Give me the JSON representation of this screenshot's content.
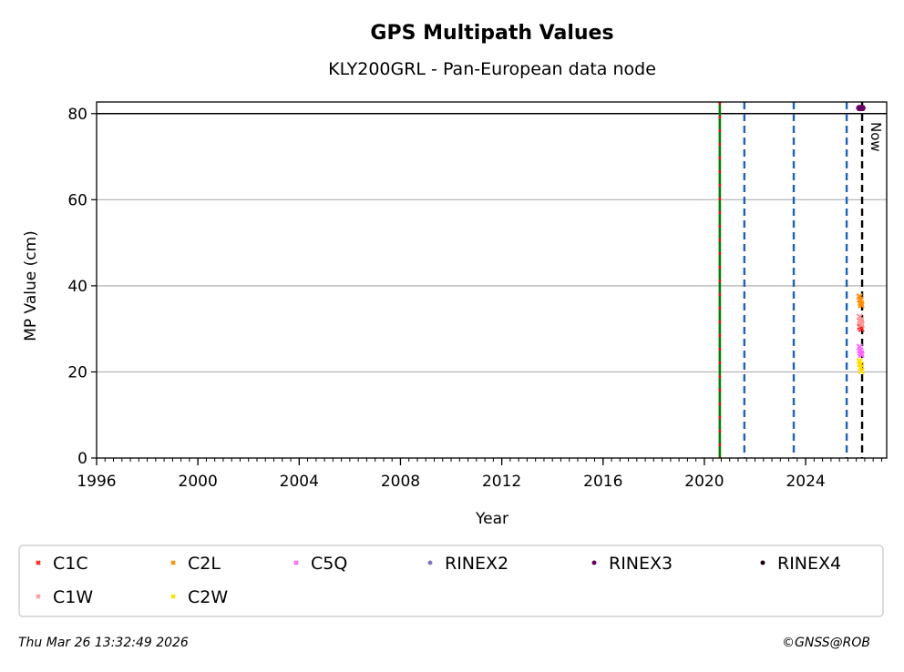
{
  "chart_data": {
    "type": "scatter",
    "title": "GPS Multipath Values",
    "subtitle": "KLY200GRL - Pan-European data node",
    "xlabel": "Year",
    "ylabel": "MP Value (cm)",
    "xlim": [
      1996,
      2027.2
    ],
    "ylim": [
      0,
      82.7
    ],
    "xticks": [
      1996,
      2000,
      2004,
      2008,
      2012,
      2016,
      2020,
      2024
    ],
    "yticks": [
      0,
      20,
      40,
      60,
      80
    ],
    "grid": "y",
    "reference_line_y": 80,
    "event_lines": [
      {
        "x": 2020.61,
        "type": "receiver-antenna",
        "colors": [
          "#008000",
          "#e8131b"
        ]
      },
      {
        "x": 2021.58,
        "type": "firmware",
        "colors": [
          "#1f62b8"
        ]
      },
      {
        "x": 2023.53,
        "type": "firmware",
        "colors": [
          "#1f62b8"
        ]
      },
      {
        "x": 2025.62,
        "type": "firmware",
        "colors": [
          "#1f62b8"
        ]
      }
    ],
    "now_line": {
      "x": 2026.23,
      "label": "Now",
      "color": "#000000"
    },
    "series": [
      {
        "name": "C1C",
        "marker": "x",
        "color": "#ff2020",
        "points": [
          [
            2026.15,
            30.5
          ],
          [
            2026.18,
            31.2
          ],
          [
            2026.2,
            30.0
          ]
        ]
      },
      {
        "name": "C2L",
        "marker": "x",
        "color": "#ff8c00",
        "points": [
          [
            2026.13,
            37.5
          ],
          [
            2026.15,
            36.8
          ],
          [
            2026.18,
            36.0
          ],
          [
            2026.2,
            35.5
          ]
        ]
      },
      {
        "name": "C5Q",
        "marker": "x",
        "color": "#ff66ff",
        "points": [
          [
            2026.13,
            25.8
          ],
          [
            2026.15,
            25.0
          ],
          [
            2026.18,
            24.4
          ],
          [
            2026.2,
            24.0
          ]
        ]
      },
      {
        "name": "RINEX2",
        "marker": "o",
        "color": "#7b7bbf",
        "points": []
      },
      {
        "name": "RINEX3",
        "marker": "o",
        "color": "#660066",
        "points": [
          [
            2026.12,
            81.3
          ],
          [
            2026.18,
            81.3
          ],
          [
            2026.24,
            81.3
          ]
        ]
      },
      {
        "name": "RINEX4",
        "marker": "o",
        "color": "#1a001a",
        "points": []
      },
      {
        "name": "C1W",
        "marker": "x",
        "color": "#ff9999",
        "points": [
          [
            2026.13,
            32.8
          ],
          [
            2026.15,
            32.0
          ],
          [
            2026.18,
            31.6
          ],
          [
            2026.2,
            31.0
          ]
        ]
      },
      {
        "name": "C2W",
        "marker": "x",
        "color": "#ffdd00",
        "points": [
          [
            2026.13,
            22.5
          ],
          [
            2026.15,
            21.8
          ],
          [
            2026.18,
            21.0
          ],
          [
            2026.2,
            20.2
          ]
        ]
      }
    ],
    "legend_position": "bottom"
  },
  "footer": {
    "timestamp": "Thu Mar 26 13:32:49 2026",
    "copyright": "©GNSS@ROB"
  }
}
